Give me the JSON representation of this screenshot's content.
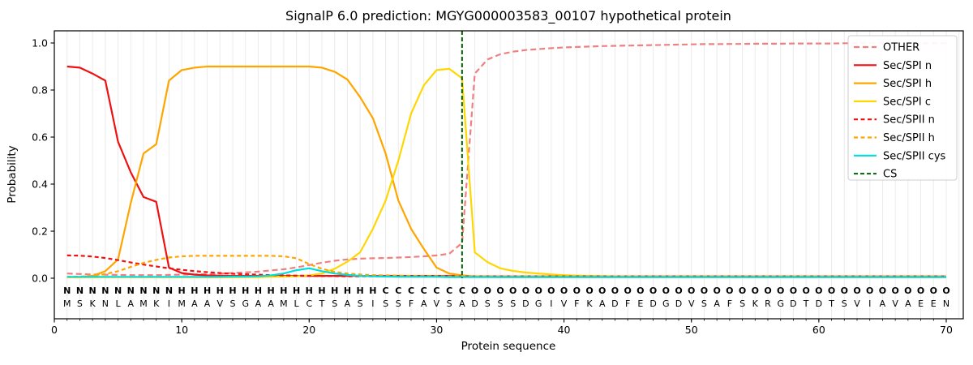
{
  "title": "SignalP 6.0 prediction: MGYG000003583_00107 hypothetical protein",
  "chart_data": {
    "type": "line",
    "title": "SignalP 6.0 prediction: MGYG000003583_00107 hypothetical protein",
    "xlabel": "Protein sequence",
    "ylabel": "Probability",
    "xlim": [
      0,
      71.35
    ],
    "ylim": [
      -0.172,
      1.052
    ],
    "grid": "vertical-per-residue",
    "legend_position": "upper right",
    "xticks": [
      [
        0,
        "0"
      ],
      [
        10,
        "10"
      ],
      [
        20,
        "20"
      ],
      [
        30,
        "30"
      ],
      [
        40,
        "40"
      ],
      [
        50,
        "50"
      ],
      [
        60,
        "60"
      ],
      [
        70,
        "70"
      ]
    ],
    "yticks": [
      [
        0.0,
        "0.0"
      ],
      [
        0.2,
        "0.2"
      ],
      [
        0.4,
        "0.4"
      ],
      [
        0.6,
        "0.6"
      ],
      [
        0.8,
        "0.8"
      ],
      [
        1.0,
        "1.0"
      ]
    ],
    "x": [
      1,
      2,
      3,
      4,
      5,
      6,
      7,
      8,
      9,
      10,
      11,
      12,
      13,
      14,
      15,
      16,
      17,
      18,
      19,
      20,
      21,
      22,
      23,
      24,
      25,
      26,
      27,
      28,
      29,
      30,
      31,
      32,
      33,
      34,
      35,
      36,
      37,
      38,
      39,
      40,
      41,
      42,
      43,
      44,
      45,
      46,
      47,
      48,
      49,
      50,
      51,
      52,
      53,
      54,
      55,
      56,
      57,
      58,
      59,
      60,
      61,
      62,
      63,
      64,
      65,
      66,
      67,
      68,
      69,
      70
    ],
    "series": [
      {
        "name": "OTHER",
        "color": "#f08080",
        "dash": "7,4",
        "width": 2.2,
        "values": [
          0.02,
          0.018,
          0.016,
          0.015,
          0.014,
          0.013,
          0.013,
          0.013,
          0.014,
          0.015,
          0.016,
          0.018,
          0.02,
          0.022,
          0.025,
          0.028,
          0.033,
          0.038,
          0.046,
          0.056,
          0.066,
          0.074,
          0.08,
          0.083,
          0.085,
          0.086,
          0.088,
          0.09,
          0.093,
          0.097,
          0.104,
          0.15,
          0.87,
          0.93,
          0.952,
          0.963,
          0.97,
          0.974,
          0.978,
          0.981,
          0.983,
          0.985,
          0.987,
          0.988,
          0.989,
          0.99,
          0.991,
          0.992,
          0.993,
          0.994,
          0.995,
          0.995,
          0.996,
          0.996,
          0.997,
          0.997,
          0.997,
          0.998,
          0.998,
          0.998,
          0.998,
          0.999,
          0.999,
          0.999,
          0.999,
          0.999,
          0.999,
          0.999,
          0.999,
          0.999
        ]
      },
      {
        "name": "Sec/SPI n",
        "color": "#ee1111",
        "dash": null,
        "width": 2.2,
        "values": [
          0.9,
          0.895,
          0.87,
          0.84,
          0.58,
          0.45,
          0.345,
          0.325,
          0.045,
          0.022,
          0.015,
          0.012,
          0.011,
          0.01,
          0.01,
          0.01,
          0.01,
          0.01,
          0.01,
          0.01,
          0.01,
          0.01,
          0.01,
          0.01,
          0.01,
          0.01,
          0.01,
          0.01,
          0.01,
          0.01,
          0.01,
          0.01,
          0.008,
          0.008,
          0.008,
          0.008,
          0.008,
          0.008,
          0.008,
          0.008,
          0.008,
          0.008,
          0.008,
          0.008,
          0.008,
          0.008,
          0.008,
          0.008,
          0.008,
          0.008,
          0.008,
          0.008,
          0.008,
          0.008,
          0.008,
          0.008,
          0.008,
          0.008,
          0.008,
          0.008,
          0.008,
          0.008,
          0.008,
          0.008,
          0.008,
          0.008,
          0.008,
          0.008,
          0.008,
          0.008
        ]
      },
      {
        "name": "Sec/SPI h",
        "color": "#ffa500",
        "dash": null,
        "width": 2.2,
        "values": [
          0.005,
          0.005,
          0.01,
          0.03,
          0.08,
          0.32,
          0.53,
          0.57,
          0.84,
          0.885,
          0.895,
          0.9,
          0.9,
          0.9,
          0.9,
          0.9,
          0.9,
          0.9,
          0.9,
          0.9,
          0.895,
          0.878,
          0.845,
          0.77,
          0.68,
          0.53,
          0.33,
          0.21,
          0.125,
          0.045,
          0.02,
          0.012,
          0.008,
          0.006,
          0.005,
          0.005,
          0.005,
          0.005,
          0.005,
          0.005,
          0.005,
          0.005,
          0.005,
          0.005,
          0.005,
          0.005,
          0.005,
          0.005,
          0.005,
          0.005,
          0.005,
          0.005,
          0.005,
          0.005,
          0.005,
          0.005,
          0.005,
          0.005,
          0.005,
          0.005,
          0.005,
          0.005,
          0.005,
          0.005,
          0.005,
          0.005,
          0.005,
          0.005,
          0.005,
          0.005
        ]
      },
      {
        "name": "Sec/SPI c",
        "color": "#ffd700",
        "dash": null,
        "width": 2.2,
        "values": [
          0.004,
          0.004,
          0.004,
          0.004,
          0.004,
          0.004,
          0.004,
          0.004,
          0.004,
          0.004,
          0.004,
          0.004,
          0.004,
          0.004,
          0.005,
          0.005,
          0.006,
          0.007,
          0.008,
          0.012,
          0.02,
          0.04,
          0.07,
          0.11,
          0.21,
          0.33,
          0.5,
          0.7,
          0.82,
          0.885,
          0.89,
          0.85,
          0.11,
          0.068,
          0.042,
          0.031,
          0.024,
          0.02,
          0.016,
          0.013,
          0.011,
          0.01,
          0.009,
          0.008,
          0.008,
          0.007,
          0.007,
          0.007,
          0.007,
          0.007,
          0.007,
          0.007,
          0.007,
          0.007,
          0.007,
          0.007,
          0.007,
          0.007,
          0.007,
          0.007,
          0.007,
          0.007,
          0.007,
          0.007,
          0.007,
          0.007,
          0.007,
          0.007,
          0.007,
          0.007
        ]
      },
      {
        "name": "Sec/SPII n",
        "color": "#ee1111",
        "dash": "5,3.5",
        "width": 2.2,
        "values": [
          0.097,
          0.096,
          0.092,
          0.086,
          0.077,
          0.067,
          0.058,
          0.05,
          0.042,
          0.036,
          0.03,
          0.026,
          0.022,
          0.019,
          0.017,
          0.015,
          0.013,
          0.012,
          0.011,
          0.01,
          0.009,
          0.009,
          0.008,
          0.008,
          0.008,
          0.008,
          0.008,
          0.008,
          0.008,
          0.008,
          0.008,
          0.008,
          0.008,
          0.008,
          0.008,
          0.008,
          0.008,
          0.008,
          0.008,
          0.008,
          0.008,
          0.008,
          0.008,
          0.008,
          0.008,
          0.008,
          0.008,
          0.008,
          0.008,
          0.008,
          0.008,
          0.008,
          0.008,
          0.008,
          0.008,
          0.008,
          0.008,
          0.008,
          0.008,
          0.008,
          0.008,
          0.008,
          0.008,
          0.008,
          0.008,
          0.008,
          0.008,
          0.008,
          0.008,
          0.008
        ]
      },
      {
        "name": "Sec/SPII h",
        "color": "#ffa500",
        "dash": "5,3.5",
        "width": 2.2,
        "values": [
          0.006,
          0.007,
          0.01,
          0.018,
          0.03,
          0.048,
          0.065,
          0.078,
          0.088,
          0.093,
          0.095,
          0.095,
          0.095,
          0.095,
          0.095,
          0.095,
          0.095,
          0.093,
          0.085,
          0.06,
          0.04,
          0.027,
          0.02,
          0.016,
          0.013,
          0.012,
          0.011,
          0.01,
          0.009,
          0.009,
          0.008,
          0.008,
          0.008,
          0.008,
          0.008,
          0.008,
          0.008,
          0.008,
          0.008,
          0.008,
          0.008,
          0.008,
          0.008,
          0.008,
          0.008,
          0.008,
          0.008,
          0.008,
          0.008,
          0.008,
          0.008,
          0.008,
          0.008,
          0.008,
          0.008,
          0.008,
          0.008,
          0.008,
          0.008,
          0.008,
          0.008,
          0.008,
          0.008,
          0.008,
          0.008,
          0.008,
          0.008,
          0.008,
          0.008,
          0.008
        ]
      },
      {
        "name": "Sec/SPII cys",
        "color": "#00dddd",
        "dash": null,
        "width": 2.2,
        "values": [
          0.006,
          0.006,
          0.006,
          0.006,
          0.006,
          0.006,
          0.006,
          0.006,
          0.006,
          0.006,
          0.006,
          0.006,
          0.006,
          0.007,
          0.007,
          0.008,
          0.012,
          0.02,
          0.034,
          0.042,
          0.03,
          0.02,
          0.014,
          0.01,
          0.008,
          0.007,
          0.006,
          0.006,
          0.006,
          0.006,
          0.005,
          0.005,
          0.005,
          0.005,
          0.005,
          0.005,
          0.005,
          0.005,
          0.005,
          0.005,
          0.005,
          0.005,
          0.005,
          0.005,
          0.005,
          0.005,
          0.005,
          0.005,
          0.005,
          0.005,
          0.005,
          0.005,
          0.005,
          0.005,
          0.005,
          0.005,
          0.005,
          0.005,
          0.005,
          0.005,
          0.005,
          0.005,
          0.005,
          0.005,
          0.005,
          0.005,
          0.005,
          0.005,
          0.005,
          0.005
        ]
      }
    ],
    "cs_line": {
      "name": "CS",
      "position": 32,
      "color": "#006400",
      "dash": "5,3",
      "width": 2
    },
    "sequence": "MSKNLAMKIMAAVSGAAMLCTSASISSFAVSADSSSDGIVFKADFEDGDVSAFSKRGDTDTSVIAVAEEN",
    "regions": "NNNNNNNNNHHHHHHHHHHHHHHHHCCCCCCCOOOOOOOOOOOOOOOOOOOOOOOOOOOOOOOOOOOOOO",
    "region_colors": {
      "N": "#ee1111",
      "H": "#ffa500",
      "C": "#eec000",
      "O": "#909090"
    },
    "sequence_color": "#2b2b2b",
    "grid_color": "#ebebeb",
    "legend_entries": [
      "OTHER",
      "Sec/SPI n",
      "Sec/SPI h",
      "Sec/SPI c",
      "Sec/SPII n",
      "Sec/SPII h",
      "Sec/SPII cys",
      "CS"
    ]
  }
}
